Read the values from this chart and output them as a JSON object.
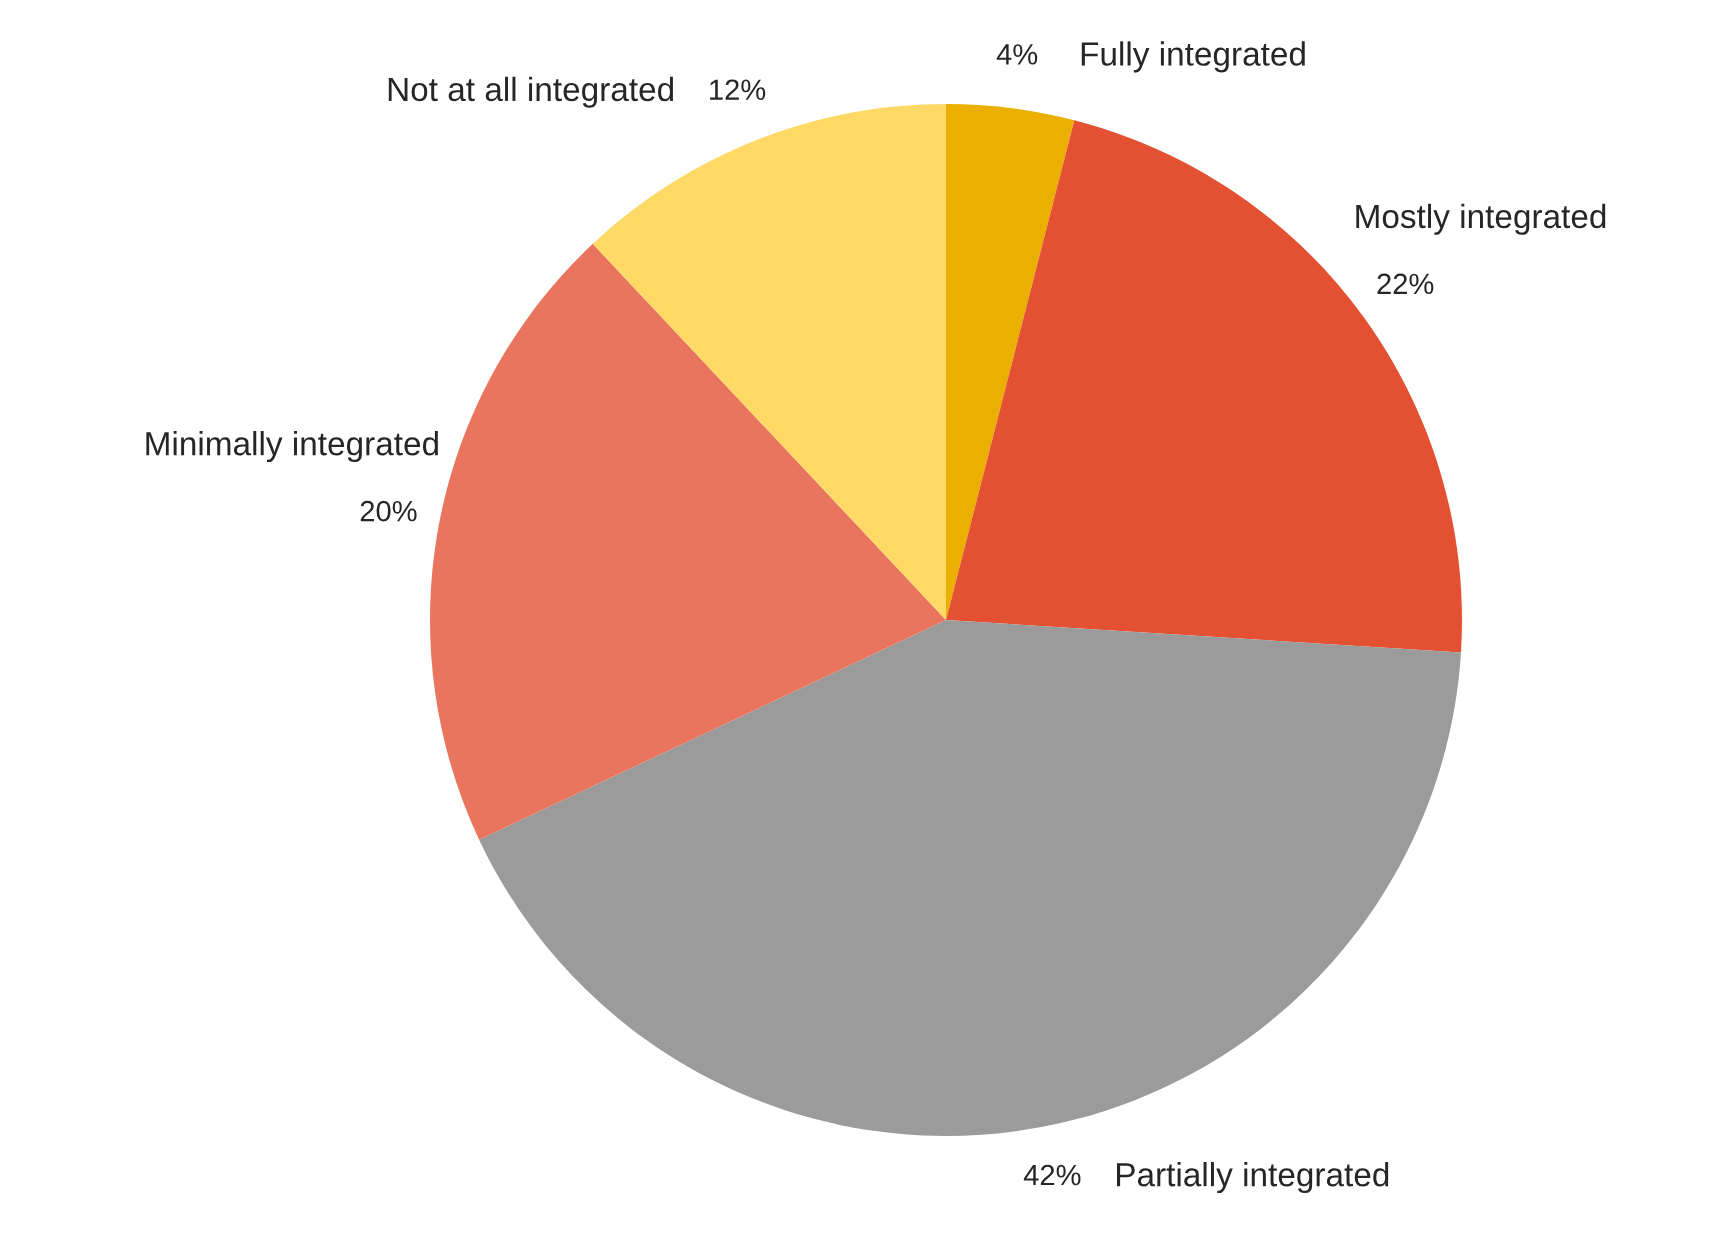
{
  "chart_data": {
    "type": "pie",
    "categories": [
      "Fully integrated",
      "Mostly integrated",
      "Partially integrated",
      "Minimally integrated",
      "Not at all integrated"
    ],
    "values": [
      4,
      22,
      42,
      20,
      12
    ],
    "colors": [
      "#ebaf00",
      "#e35132",
      "#9b9b9b",
      "#ea755f",
      "#ffd966"
    ],
    "value_labels": [
      "4%",
      "22%",
      "42%",
      "20%",
      "12%"
    ]
  }
}
